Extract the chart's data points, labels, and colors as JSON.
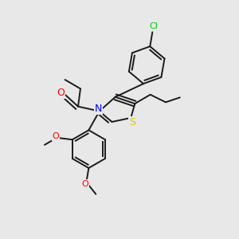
{
  "bg_color": "#e8e8e8",
  "atom_colors": {
    "C": "#000000",
    "N": "#0000ff",
    "O": "#ff0000",
    "S": "#cccc00",
    "Cl": "#00cc00"
  },
  "bond_color": "#1a1a1a",
  "bond_width": 1.4,
  "dbo": 0.013,
  "font_size": 9,
  "fig_size": [
    3.0,
    3.0
  ],
  "dpi": 100
}
